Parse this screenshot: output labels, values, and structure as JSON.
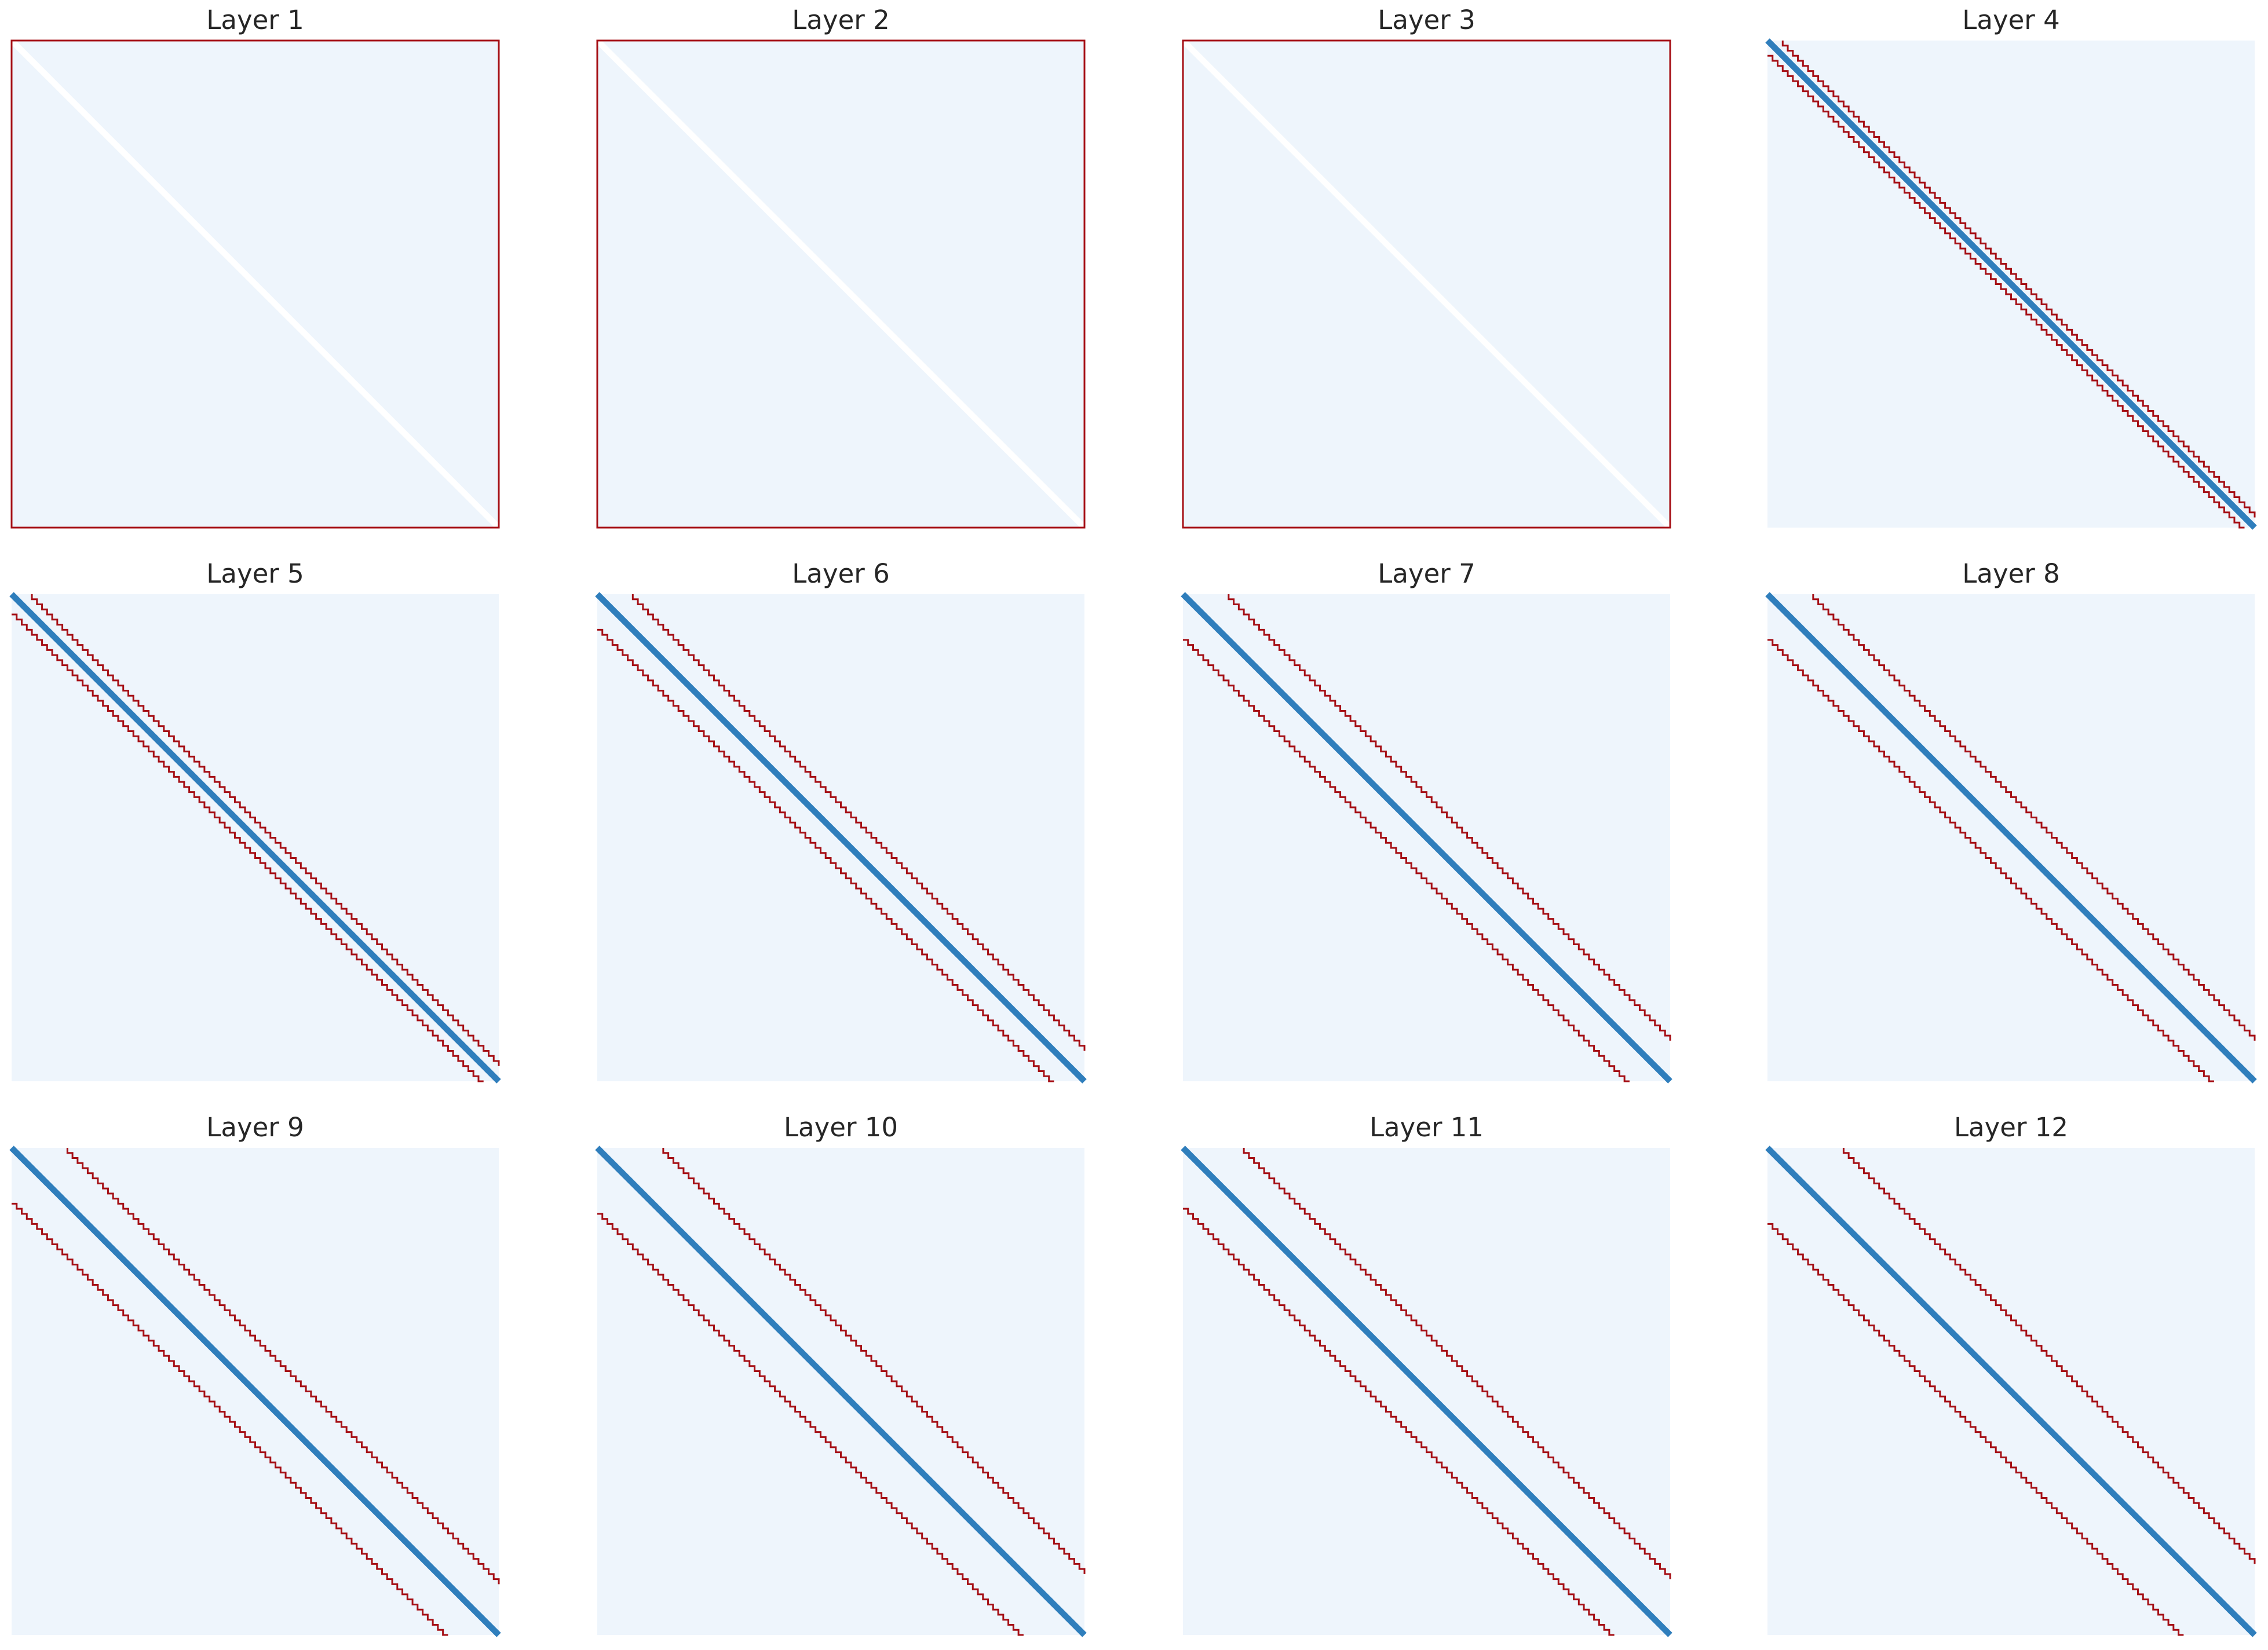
{
  "chart_data": [
    {
      "type": "heatmap",
      "title": "Layer 1",
      "size": 96,
      "window": null
    },
    {
      "type": "heatmap",
      "title": "Layer 2",
      "size": 96,
      "window": null
    },
    {
      "type": "heatmap",
      "title": "Layer 3",
      "size": 96,
      "window": null
    },
    {
      "type": "heatmap",
      "title": "Layer 4",
      "size": 96,
      "window": 2
    },
    {
      "type": "heatmap",
      "title": "Layer 5",
      "size": 96,
      "window": 3
    },
    {
      "type": "heatmap",
      "title": "Layer 6",
      "size": 96,
      "window": 6
    },
    {
      "type": "heatmap",
      "title": "Layer 7",
      "size": 96,
      "window": 8
    },
    {
      "type": "heatmap",
      "title": "Layer 8",
      "size": 96,
      "window": 8
    },
    {
      "type": "heatmap",
      "title": "Layer 9",
      "size": 96,
      "window": 10
    },
    {
      "type": "heatmap",
      "title": "Layer 10",
      "size": 96,
      "window": 12
    },
    {
      "type": "heatmap",
      "title": "Layer 11",
      "size": 96,
      "window": 11
    },
    {
      "type": "heatmap",
      "title": "Layer 12",
      "size": 96,
      "window": 14
    }
  ]
}
